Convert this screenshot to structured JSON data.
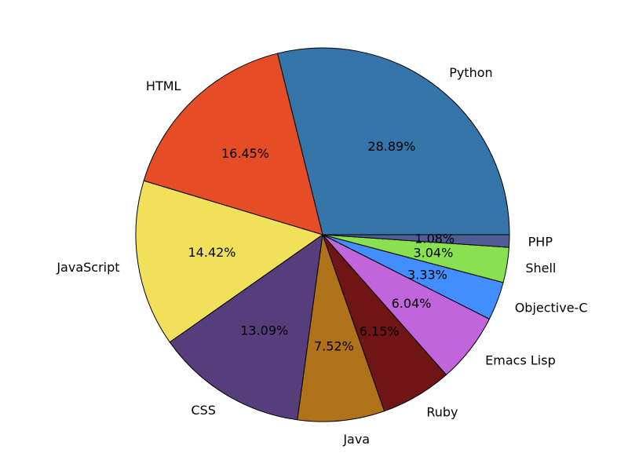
{
  "chart_data": {
    "type": "pie",
    "start_angle_deg": 0,
    "direction": "counterclockwise",
    "slices": [
      {
        "label": "Python",
        "value": 28.89,
        "pct_label": "28.89%",
        "color": "#3574a8"
      },
      {
        "label": "HTML",
        "value": 16.45,
        "pct_label": "16.45%",
        "color": "#e44d26"
      },
      {
        "label": "JavaScript",
        "value": 14.42,
        "pct_label": "14.42%",
        "color": "#f1e05a"
      },
      {
        "label": "CSS",
        "value": 13.09,
        "pct_label": "13.09%",
        "color": "#563d7c"
      },
      {
        "label": "Java",
        "value": 7.52,
        "pct_label": "7.52%",
        "color": "#b07219"
      },
      {
        "label": "Ruby",
        "value": 6.15,
        "pct_label": "6.15%",
        "color": "#701516"
      },
      {
        "label": "Emacs Lisp",
        "value": 6.04,
        "pct_label": "6.04%",
        "color": "#c065db"
      },
      {
        "label": "Objective-C",
        "value": 3.33,
        "pct_label": "3.33%",
        "color": "#438eff"
      },
      {
        "label": "Shell",
        "value": 3.04,
        "pct_label": "3.04%",
        "color": "#89e051"
      },
      {
        "label": "PHP",
        "value": 1.08,
        "pct_label": "1.08%",
        "color": "#4f5d95"
      }
    ]
  }
}
